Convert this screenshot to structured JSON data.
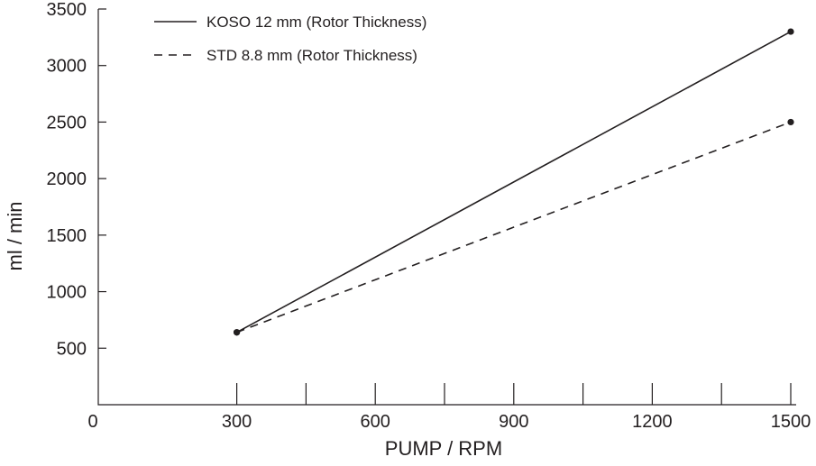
{
  "chart_data": {
    "type": "line",
    "title": "",
    "xlabel": "PUMP / RPM",
    "ylabel": "ml / min",
    "xlim": [
      0,
      1500
    ],
    "ylim": [
      0,
      3500
    ],
    "x_ticks": [
      0,
      300,
      600,
      900,
      1200,
      1500
    ],
    "x_minor_ticks": [
      300,
      450,
      600,
      750,
      900,
      1050,
      1200,
      1350,
      1500
    ],
    "y_ticks": [
      500,
      1000,
      1500,
      2000,
      2500,
      3000,
      3500
    ],
    "grid": false,
    "legend_position": "top-left",
    "series": [
      {
        "name": "KOSO 12 mm (Rotor Thickness)",
        "style": "solid",
        "color": "#231f20",
        "x": [
          300,
          1500
        ],
        "y": [
          640,
          3300
        ]
      },
      {
        "name": "STD 8.8 mm (Rotor Thickness)",
        "style": "dashed",
        "color": "#231f20",
        "x": [
          300,
          1500
        ],
        "y": [
          640,
          2500
        ]
      }
    ]
  }
}
